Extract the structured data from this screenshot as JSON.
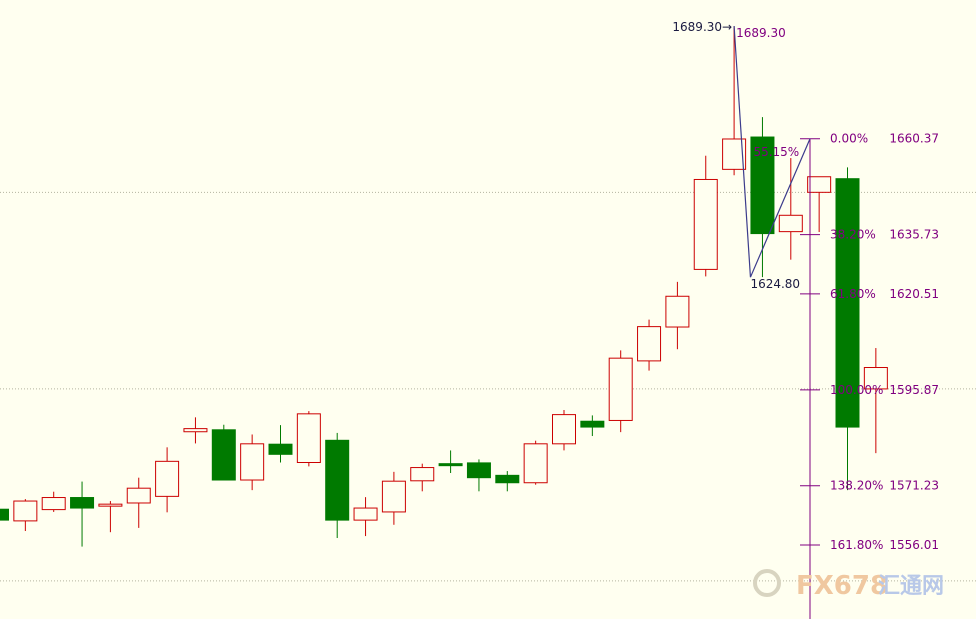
{
  "chart_data": {
    "type": "candlestick",
    "title": "",
    "xlabel": "",
    "ylabel": "",
    "ylim": [
      1537,
      1696
    ],
    "grid": "horizontal dotted",
    "colors": {
      "up": "#cc0000",
      "down": "#007a00",
      "fib": "#800080",
      "swing": "#3c3c8c",
      "label": "#800080",
      "background": "#fffff0"
    },
    "candles": [
      {
        "o": 1565.2,
        "h": 1565.2,
        "l": 1561.0,
        "c": 1562.4
      },
      {
        "o": 1562.2,
        "h": 1567.8,
        "l": 1559.6,
        "c": 1567.3
      },
      {
        "o": 1565.1,
        "h": 1569.7,
        "l": 1564.5,
        "c": 1568.2
      },
      {
        "o": 1568.2,
        "h": 1572.3,
        "l": 1555.6,
        "c": 1565.5
      },
      {
        "o": 1566.1,
        "h": 1567.3,
        "l": 1559.3,
        "c": 1566.5
      },
      {
        "o": 1566.8,
        "h": 1573.3,
        "l": 1560.4,
        "c": 1570.6
      },
      {
        "o": 1568.5,
        "h": 1581.1,
        "l": 1564.4,
        "c": 1577.5
      },
      {
        "o": 1585.1,
        "h": 1588.8,
        "l": 1582.1,
        "c": 1585.9
      },
      {
        "o": 1585.6,
        "h": 1586.9,
        "l": 1572.9,
        "c": 1572.7
      },
      {
        "o": 1572.7,
        "h": 1584.4,
        "l": 1570.1,
        "c": 1582.0
      },
      {
        "o": 1581.9,
        "h": 1586.8,
        "l": 1577.2,
        "c": 1579.3
      },
      {
        "o": 1577.2,
        "h": 1590.4,
        "l": 1576.2,
        "c": 1589.7
      },
      {
        "o": 1582.9,
        "h": 1584.8,
        "l": 1557.8,
        "c": 1562.4
      },
      {
        "o": 1562.4,
        "h": 1568.3,
        "l": 1558.3,
        "c": 1565.5
      },
      {
        "o": 1564.5,
        "h": 1574.8,
        "l": 1561.2,
        "c": 1572.4
      },
      {
        "o": 1572.5,
        "h": 1576.9,
        "l": 1569.8,
        "c": 1575.9
      },
      {
        "o": 1576.9,
        "h": 1580.3,
        "l": 1574.5,
        "c": 1576.4
      },
      {
        "o": 1577.1,
        "h": 1578.0,
        "l": 1569.8,
        "c": 1573.3
      },
      {
        "o": 1573.9,
        "h": 1575.0,
        "l": 1569.8,
        "c": 1572.0
      },
      {
        "o": 1572.0,
        "h": 1582.8,
        "l": 1571.5,
        "c": 1582.0
      },
      {
        "o": 1582.0,
        "h": 1590.7,
        "l": 1580.3,
        "c": 1589.5
      },
      {
        "o": 1587.8,
        "h": 1589.3,
        "l": 1584.0,
        "c": 1586.3
      },
      {
        "o": 1588.0,
        "h": 1606.0,
        "l": 1585.0,
        "c": 1604.0
      },
      {
        "o": 1603.3,
        "h": 1613.9,
        "l": 1600.8,
        "c": 1612.1
      },
      {
        "o": 1612.0,
        "h": 1623.6,
        "l": 1606.3,
        "c": 1619.9
      },
      {
        "o": 1626.8,
        "h": 1656.0,
        "l": 1625.0,
        "c": 1649.9
      },
      {
        "o": 1652.5,
        "h": 1689.3,
        "l": 1651.0,
        "c": 1660.3
      },
      {
        "o": 1660.8,
        "h": 1665.9,
        "l": 1624.8,
        "c": 1636.0
      },
      {
        "o": 1636.5,
        "h": 1655.4,
        "l": 1629.3,
        "c": 1640.7
      },
      {
        "o": 1646.6,
        "h": 1650.2,
        "l": 1636.4,
        "c": 1650.6
      },
      {
        "o": 1650.1,
        "h": 1653.0,
        "l": 1570.1,
        "c": 1586.3
      },
      {
        "o": 1596.1,
        "h": 1606.6,
        "l": 1579.6,
        "c": 1601.6
      }
    ],
    "annotations": {
      "high_arrow_label": "1689.30→",
      "high_label": "1689.30",
      "low_label": "1624.80",
      "retracement_label": "55.15%"
    },
    "fib_levels": [
      {
        "pct": "0.00%",
        "price": "1660.37",
        "value": 1660.37
      },
      {
        "pct": "38.20%",
        "price": "1635.73",
        "value": 1635.73
      },
      {
        "pct": "61.80%",
        "price": "1620.51",
        "value": 1620.51
      },
      {
        "pct": "100.00%",
        "price": "1595.87",
        "value": 1595.87
      },
      {
        "pct": "138.20%",
        "price": "1571.23",
        "value": 1571.23
      },
      {
        "pct": "161.80%",
        "price": "1556.01",
        "value": 1556.01
      }
    ],
    "gridlines": [
      1646.6,
      1596.1,
      1546.8
    ],
    "watermark": {
      "text_a": "FX678",
      "text_b": "汇通网"
    }
  }
}
